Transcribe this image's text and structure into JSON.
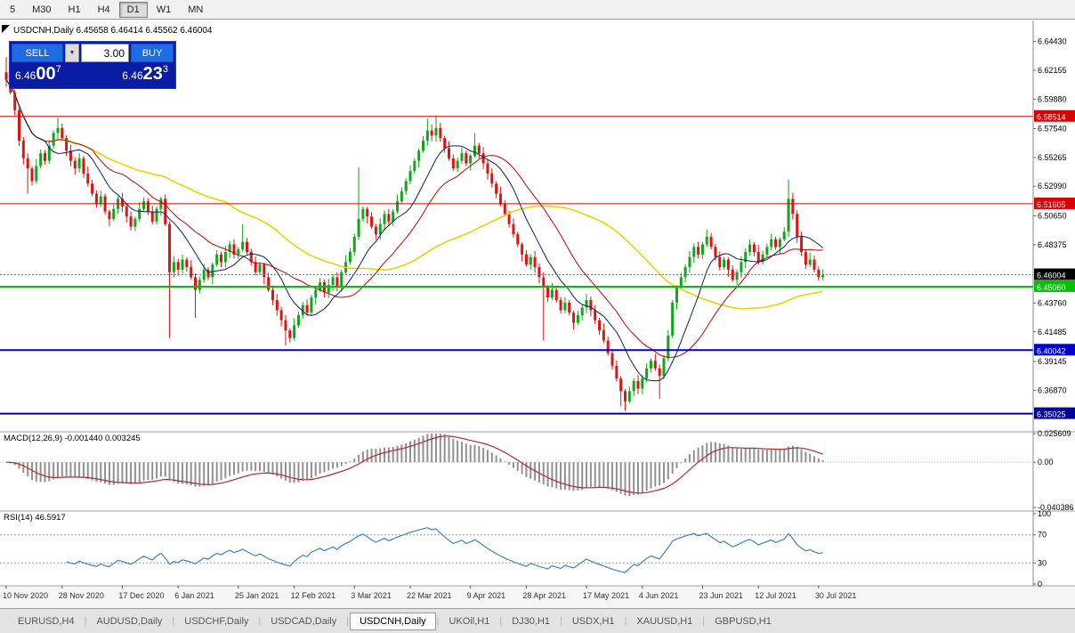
{
  "toolbar": {
    "timeframes": [
      {
        "label": "5",
        "active": false
      },
      {
        "label": "M30",
        "active": false
      },
      {
        "label": "H1",
        "active": false
      },
      {
        "label": "H4",
        "active": false
      },
      {
        "label": "D1",
        "active": true
      },
      {
        "label": "W1",
        "active": false
      },
      {
        "label": "MN",
        "active": false
      }
    ]
  },
  "trade_panel": {
    "sell_label": "SELL",
    "buy_label": "BUY",
    "volume": "3.00",
    "dropdown_icon": "▼",
    "sell_price": {
      "prefix": "6.46",
      "big": "00",
      "sup": "7"
    },
    "buy_price": {
      "prefix": "6.46",
      "big": "23",
      "sup": "3"
    }
  },
  "tabs": {
    "items": [
      {
        "label": "EURUSD,H4",
        "active": false
      },
      {
        "label": "AUDUSD,Daily",
        "active": false
      },
      {
        "label": "USDCHF,Daily",
        "active": false
      },
      {
        "label": "USDCAD,Daily",
        "active": false
      },
      {
        "label": "USDCNH,Daily",
        "active": true
      },
      {
        "label": "UKOil,H1",
        "active": false
      },
      {
        "label": "DJ30,H1",
        "active": false
      },
      {
        "label": "USDX,H1",
        "active": false
      },
      {
        "label": "XAUUSD,H1",
        "active": false
      },
      {
        "label": "GBPUSD,H1",
        "active": false
      }
    ]
  },
  "chart_data": {
    "type": "candlestick",
    "symbol": "USDCNH",
    "period": "Daily",
    "info_line": "USDCNH,Daily 6.45658 6.46414 6.45562 6.46004",
    "y_range": [
      6.338,
      6.656
    ],
    "price_axis_ticks": [
      "6.64430",
      "6.62155",
      "6.59880",
      "6.57540",
      "6.55265",
      "6.52990",
      "6.50650",
      "6.48375",
      "6.43760",
      "6.41485",
      "6.39145",
      "6.36870"
    ],
    "current_price": {
      "label": "6.46004",
      "value": 6.46004,
      "badge_color": "#000000"
    },
    "levels": [
      {
        "label": "6.58514",
        "value": 6.58514,
        "color": "#dd0000",
        "width": 1
      },
      {
        "label": "6.51605",
        "value": 6.51605,
        "color": "#dd0000",
        "width": 1
      },
      {
        "label": "6.45060",
        "value": 6.4506,
        "color": "#00c400",
        "width": 2
      },
      {
        "label": "6.40042",
        "value": 6.40042,
        "color": "#0000d0",
        "width": 2
      },
      {
        "label": "6.35025",
        "value": 6.35025,
        "color": "#000099",
        "width": 2
      }
    ],
    "first_open": 6.62,
    "closes": [
      6.614,
      6.604,
      6.59,
      6.566,
      6.552,
      6.544,
      6.534,
      6.546,
      6.556,
      6.55,
      6.562,
      6.572,
      6.576,
      6.568,
      6.558,
      6.55,
      6.544,
      6.552,
      6.54,
      6.532,
      6.524,
      6.516,
      6.522,
      6.51,
      6.504,
      6.512,
      6.52,
      6.514,
      6.506,
      6.498,
      6.504,
      6.512,
      6.518,
      6.51,
      6.502,
      6.512,
      6.52,
      6.5,
      6.462,
      6.47,
      6.464,
      6.472,
      6.466,
      6.458,
      6.448,
      6.456,
      6.464,
      6.458,
      6.468,
      6.476,
      6.47,
      6.478,
      6.484,
      6.476,
      6.48,
      6.486,
      6.478,
      6.47,
      6.462,
      6.468,
      6.458,
      6.448,
      6.44,
      6.432,
      6.424,
      6.416,
      6.41,
      6.42,
      6.428,
      6.436,
      6.43,
      6.442,
      6.448,
      6.454,
      6.446,
      6.452,
      6.458,
      6.45,
      6.462,
      6.47,
      6.478,
      6.49,
      6.504,
      6.512,
      6.506,
      6.498,
      6.492,
      6.5,
      6.508,
      6.502,
      6.51,
      6.518,
      6.526,
      6.534,
      6.542,
      6.55,
      6.558,
      6.566,
      6.574,
      6.57,
      6.576,
      6.568,
      6.56,
      6.552,
      6.544,
      6.55,
      6.556,
      6.548,
      6.554,
      6.562,
      6.556,
      6.548,
      6.54,
      6.532,
      6.524,
      6.516,
      6.508,
      6.5,
      6.492,
      6.484,
      6.476,
      6.468,
      6.474,
      6.466,
      6.458,
      6.45,
      6.442,
      6.448,
      6.44,
      6.432,
      6.438,
      6.43,
      6.422,
      6.428,
      6.434,
      6.44,
      6.432,
      6.424,
      6.416,
      6.408,
      6.398,
      6.388,
      6.378,
      6.368,
      6.36,
      6.368,
      6.376,
      6.37,
      6.378,
      6.386,
      6.392,
      6.386,
      6.38,
      6.394,
      6.412,
      6.438,
      6.45,
      6.458,
      6.466,
      6.474,
      6.482,
      6.476,
      6.484,
      6.49,
      6.482,
      6.474,
      6.466,
      6.472,
      6.464,
      6.456,
      6.462,
      6.47,
      6.478,
      6.484,
      6.478,
      6.47,
      6.476,
      6.482,
      6.488,
      6.482,
      6.488,
      6.494,
      6.52,
      6.508,
      6.49,
      6.478,
      6.468,
      6.472,
      6.464,
      6.458,
      6.46
    ],
    "wick_pattern": [
      0.0016,
      0.0035,
      0.0022,
      0.0048,
      0.0028,
      0.004,
      0.0019,
      0.0055,
      0.0031,
      0.0025,
      0.0044,
      0.002
    ],
    "spikes": [
      {
        "i": 0,
        "h": 6.632
      },
      {
        "i": 5,
        "l": 6.524
      },
      {
        "i": 12,
        "h": 6.584
      },
      {
        "i": 38,
        "l": 6.41
      },
      {
        "i": 44,
        "l": 6.426
      },
      {
        "i": 55,
        "h": 6.5
      },
      {
        "i": 65,
        "l": 6.404
      },
      {
        "i": 82,
        "h": 6.545
      },
      {
        "i": 98,
        "h": 6.5835
      },
      {
        "i": 100,
        "h": 6.586
      },
      {
        "i": 109,
        "h": 6.572
      },
      {
        "i": 125,
        "l": 6.408
      },
      {
        "i": 143,
        "l": 6.356
      },
      {
        "i": 144,
        "l": 6.3525
      },
      {
        "i": 152,
        "l": 6.362
      },
      {
        "i": 182,
        "h": 6.5353
      }
    ],
    "date_labels": [
      {
        "label": "10 Nov 2020",
        "i": 0
      },
      {
        "label": "28 Nov 2020",
        "i": 13
      },
      {
        "label": "17 Dec 2020",
        "i": 27
      },
      {
        "label": "6 Jan 2021",
        "i": 40
      },
      {
        "label": "25 Jan 2021",
        "i": 54
      },
      {
        "label": "12 Feb 2021",
        "i": 67
      },
      {
        "label": "3 Mar 2021",
        "i": 81
      },
      {
        "label": "22 Mar 2021",
        "i": 94
      },
      {
        "label": "9 Apr 2021",
        "i": 108
      },
      {
        "label": "28 Apr 2021",
        "i": 121
      },
      {
        "label": "17 May 2021",
        "i": 135
      },
      {
        "label": "4 Jun 2021",
        "i": 148
      },
      {
        "label": "23 Jun 2021",
        "i": 162
      },
      {
        "label": "12 Jul 2021",
        "i": 175
      },
      {
        "label": "30 Jul 2021",
        "i": 189
      }
    ],
    "moving_averages": [
      {
        "name": "slow-ma",
        "period": 52,
        "color": "#e6d400",
        "width": 1.6
      },
      {
        "name": "medium-ma",
        "period": 21,
        "color": "#c00000",
        "width": 1
      },
      {
        "name": "fast-ma",
        "period": 10,
        "color": "#001f7a",
        "width": 1
      }
    ],
    "macd": {
      "label": "MACD(12,26,9) -0.001440 0.003245",
      "fast": 12,
      "slow": 26,
      "signal": 9,
      "axis": [
        {
          "label": "0.025609",
          "value": 0.025609
        },
        {
          "label": "0.00",
          "value": 0.0
        },
        {
          "label": "-0.040386",
          "value": -0.040386
        }
      ],
      "histogram_color": "#909090",
      "signal_color": "#b22a2a"
    },
    "rsi": {
      "label": "RSI(14) 46.5917",
      "period": 14,
      "axis": [
        {
          "label": "100",
          "value": 100
        },
        {
          "label": "70",
          "value": 70
        },
        {
          "label": "30",
          "value": 30
        },
        {
          "label": "0",
          "value": 0
        }
      ],
      "levels": [
        70,
        30
      ],
      "line_color": "#3f7fc0"
    },
    "candle_colors": {
      "bull": "#0ca816",
      "bear": "#e01212"
    }
  }
}
